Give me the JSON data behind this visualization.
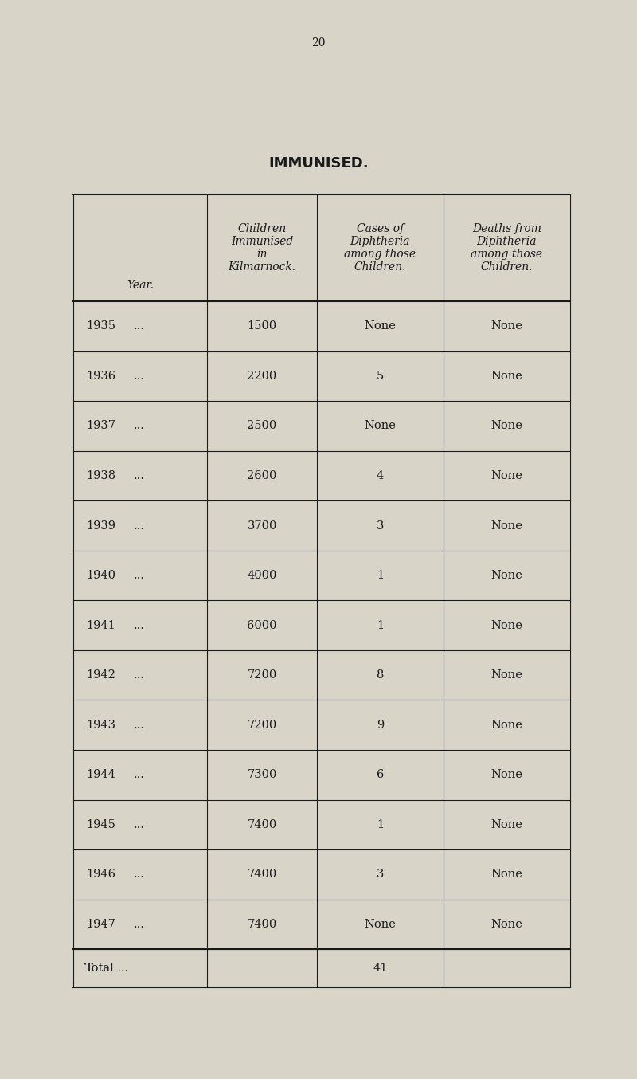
{
  "page_number": "20",
  "title": "IMMUNISED.",
  "background_color": "#d8d5c8",
  "text_color": "#1a1a1a",
  "col_headers": [
    [
      "Year.",
      "",
      "",
      ""
    ],
    [
      "Children\nImmunised\nin\nKilmarnock.",
      "",
      "",
      ""
    ],
    [
      "Cases of\nDiphtheria\namong those\nChildren.",
      "",
      "",
      ""
    ],
    [
      "Deaths from\nDiphtheria\namong those\nChildren.",
      "",
      "",
      ""
    ]
  ],
  "header_line1": [
    "Year.",
    "Children\nImmunised\nin\nKilmarnock.",
    "Cases of\nDiphtheria\namong those\nChildren.",
    "Deaths from\nDiphtheria\namong those\nChildren."
  ],
  "rows": [
    [
      "1935",
      "...",
      "1500",
      "None",
      "None"
    ],
    [
      "1936",
      "...",
      "2200",
      "5",
      "None"
    ],
    [
      "1937",
      "...",
      "2500",
      "None",
      "None"
    ],
    [
      "1938",
      "...",
      "2600",
      "4",
      "None"
    ],
    [
      "1939",
      "...",
      "3700",
      "3",
      "None"
    ],
    [
      "1940",
      "...",
      "4000",
      "1",
      "None"
    ],
    [
      "1941",
      "...",
      "6000",
      "1",
      "None"
    ],
    [
      "1942",
      "...",
      "7200",
      "8",
      "None"
    ],
    [
      "1943",
      "...",
      "7200",
      "9",
      "None"
    ],
    [
      "1944",
      "...",
      "7300",
      "6",
      "None"
    ],
    [
      "1945",
      "...",
      "7400",
      "1",
      "None"
    ],
    [
      "1946",
      "...",
      "7400",
      "3",
      "None"
    ],
    [
      "1947",
      "...",
      "7400",
      "None",
      "None"
    ]
  ],
  "total_row": [
    "Total ...",
    "",
    "41",
    ""
  ],
  "title_fontsize": 13,
  "header_fontsize": 10,
  "body_fontsize": 10.5,
  "page_num_fontsize": 10
}
